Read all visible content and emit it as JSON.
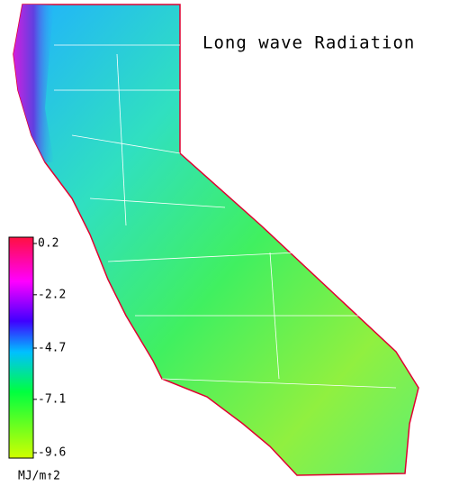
{
  "title": "Long wave Radiation",
  "colorbar": {
    "range": [
      -9.6,
      0.2
    ],
    "ticks": [
      0.2,
      -2.2,
      -4.7,
      -7.1,
      -9.6
    ],
    "unit": "MJ/m↑2"
  }
}
